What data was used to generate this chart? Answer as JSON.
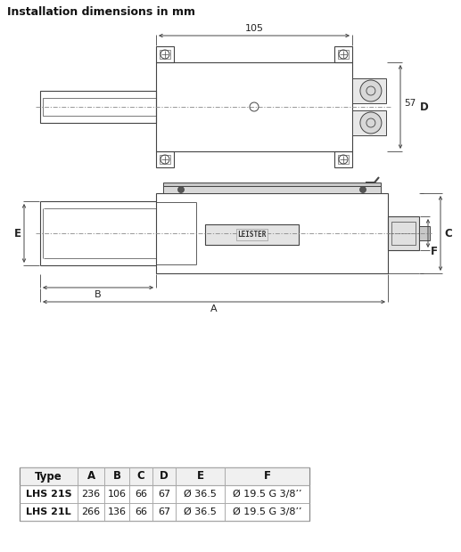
{
  "title": "Installation dimensions in mm",
  "bg_color": "#ffffff",
  "lc": "#444444",
  "dim_105": "105",
  "dim_57": "57",
  "dim_A": "A",
  "dim_B": "B",
  "dim_C": "C",
  "dim_D": "D",
  "dim_E": "E",
  "dim_F": "F",
  "table_headers": [
    "Type",
    "A",
    "B",
    "C",
    "D",
    "E",
    "F"
  ],
  "table_rows": [
    [
      "LHS 21S",
      "236",
      "106",
      "66",
      "67",
      "Ø 36.5",
      "Ø 19.5 G 3/8’’"
    ],
    [
      "LHS 21L",
      "266",
      "136",
      "66",
      "67",
      "Ø 36.5",
      "Ø 19.5 G 3/8’’"
    ]
  ]
}
